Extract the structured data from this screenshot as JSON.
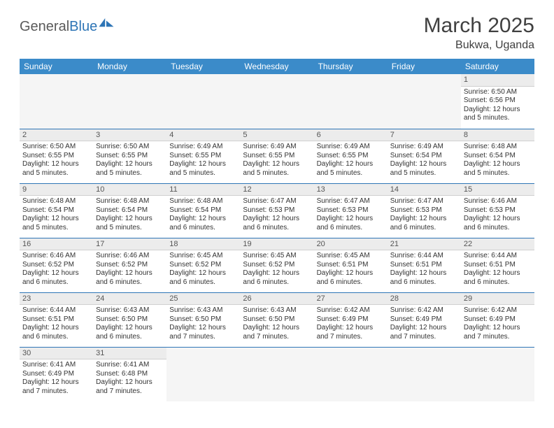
{
  "logo": {
    "part1": "General",
    "part2": "Blue"
  },
  "title": "March 2025",
  "subtitle": "Bukwa, Uganda",
  "colors": {
    "header_bg": "#3b8bc9",
    "header_fg": "#ffffff",
    "rule": "#2e75b6",
    "daynum_bg": "#ececec",
    "text": "#333333",
    "page_bg": "#ffffff"
  },
  "weekdays": [
    "Sunday",
    "Monday",
    "Tuesday",
    "Wednesday",
    "Thursday",
    "Friday",
    "Saturday"
  ],
  "days": {
    "1": {
      "sunrise": "Sunrise: 6:50 AM",
      "sunset": "Sunset: 6:56 PM",
      "daylight": "Daylight: 12 hours and 5 minutes."
    },
    "2": {
      "sunrise": "Sunrise: 6:50 AM",
      "sunset": "Sunset: 6:55 PM",
      "daylight": "Daylight: 12 hours and 5 minutes."
    },
    "3": {
      "sunrise": "Sunrise: 6:50 AM",
      "sunset": "Sunset: 6:55 PM",
      "daylight": "Daylight: 12 hours and 5 minutes."
    },
    "4": {
      "sunrise": "Sunrise: 6:49 AM",
      "sunset": "Sunset: 6:55 PM",
      "daylight": "Daylight: 12 hours and 5 minutes."
    },
    "5": {
      "sunrise": "Sunrise: 6:49 AM",
      "sunset": "Sunset: 6:55 PM",
      "daylight": "Daylight: 12 hours and 5 minutes."
    },
    "6": {
      "sunrise": "Sunrise: 6:49 AM",
      "sunset": "Sunset: 6:55 PM",
      "daylight": "Daylight: 12 hours and 5 minutes."
    },
    "7": {
      "sunrise": "Sunrise: 6:49 AM",
      "sunset": "Sunset: 6:54 PM",
      "daylight": "Daylight: 12 hours and 5 minutes."
    },
    "8": {
      "sunrise": "Sunrise: 6:48 AM",
      "sunset": "Sunset: 6:54 PM",
      "daylight": "Daylight: 12 hours and 5 minutes."
    },
    "9": {
      "sunrise": "Sunrise: 6:48 AM",
      "sunset": "Sunset: 6:54 PM",
      "daylight": "Daylight: 12 hours and 5 minutes."
    },
    "10": {
      "sunrise": "Sunrise: 6:48 AM",
      "sunset": "Sunset: 6:54 PM",
      "daylight": "Daylight: 12 hours and 5 minutes."
    },
    "11": {
      "sunrise": "Sunrise: 6:48 AM",
      "sunset": "Sunset: 6:54 PM",
      "daylight": "Daylight: 12 hours and 6 minutes."
    },
    "12": {
      "sunrise": "Sunrise: 6:47 AM",
      "sunset": "Sunset: 6:53 PM",
      "daylight": "Daylight: 12 hours and 6 minutes."
    },
    "13": {
      "sunrise": "Sunrise: 6:47 AM",
      "sunset": "Sunset: 6:53 PM",
      "daylight": "Daylight: 12 hours and 6 minutes."
    },
    "14": {
      "sunrise": "Sunrise: 6:47 AM",
      "sunset": "Sunset: 6:53 PM",
      "daylight": "Daylight: 12 hours and 6 minutes."
    },
    "15": {
      "sunrise": "Sunrise: 6:46 AM",
      "sunset": "Sunset: 6:53 PM",
      "daylight": "Daylight: 12 hours and 6 minutes."
    },
    "16": {
      "sunrise": "Sunrise: 6:46 AM",
      "sunset": "Sunset: 6:52 PM",
      "daylight": "Daylight: 12 hours and 6 minutes."
    },
    "17": {
      "sunrise": "Sunrise: 6:46 AM",
      "sunset": "Sunset: 6:52 PM",
      "daylight": "Daylight: 12 hours and 6 minutes."
    },
    "18": {
      "sunrise": "Sunrise: 6:45 AM",
      "sunset": "Sunset: 6:52 PM",
      "daylight": "Daylight: 12 hours and 6 minutes."
    },
    "19": {
      "sunrise": "Sunrise: 6:45 AM",
      "sunset": "Sunset: 6:52 PM",
      "daylight": "Daylight: 12 hours and 6 minutes."
    },
    "20": {
      "sunrise": "Sunrise: 6:45 AM",
      "sunset": "Sunset: 6:51 PM",
      "daylight": "Daylight: 12 hours and 6 minutes."
    },
    "21": {
      "sunrise": "Sunrise: 6:44 AM",
      "sunset": "Sunset: 6:51 PM",
      "daylight": "Daylight: 12 hours and 6 minutes."
    },
    "22": {
      "sunrise": "Sunrise: 6:44 AM",
      "sunset": "Sunset: 6:51 PM",
      "daylight": "Daylight: 12 hours and 6 minutes."
    },
    "23": {
      "sunrise": "Sunrise: 6:44 AM",
      "sunset": "Sunset: 6:51 PM",
      "daylight": "Daylight: 12 hours and 6 minutes."
    },
    "24": {
      "sunrise": "Sunrise: 6:43 AM",
      "sunset": "Sunset: 6:50 PM",
      "daylight": "Daylight: 12 hours and 6 minutes."
    },
    "25": {
      "sunrise": "Sunrise: 6:43 AM",
      "sunset": "Sunset: 6:50 PM",
      "daylight": "Daylight: 12 hours and 7 minutes."
    },
    "26": {
      "sunrise": "Sunrise: 6:43 AM",
      "sunset": "Sunset: 6:50 PM",
      "daylight": "Daylight: 12 hours and 7 minutes."
    },
    "27": {
      "sunrise": "Sunrise: 6:42 AM",
      "sunset": "Sunset: 6:49 PM",
      "daylight": "Daylight: 12 hours and 7 minutes."
    },
    "28": {
      "sunrise": "Sunrise: 6:42 AM",
      "sunset": "Sunset: 6:49 PM",
      "daylight": "Daylight: 12 hours and 7 minutes."
    },
    "29": {
      "sunrise": "Sunrise: 6:42 AM",
      "sunset": "Sunset: 6:49 PM",
      "daylight": "Daylight: 12 hours and 7 minutes."
    },
    "30": {
      "sunrise": "Sunrise: 6:41 AM",
      "sunset": "Sunset: 6:49 PM",
      "daylight": "Daylight: 12 hours and 7 minutes."
    },
    "31": {
      "sunrise": "Sunrise: 6:41 AM",
      "sunset": "Sunset: 6:48 PM",
      "daylight": "Daylight: 12 hours and 7 minutes."
    }
  },
  "layout": {
    "first_weekday_index": 6,
    "num_days": 31
  }
}
